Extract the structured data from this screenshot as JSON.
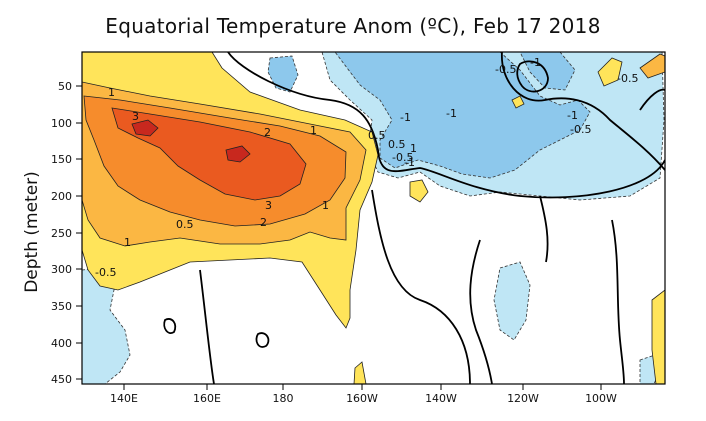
{
  "chart_data": {
    "type": "heatmap",
    "title": "Equatorial Temperature Anom (ºC), Feb 17 2018",
    "ylabel": "Depth (meter)",
    "xlabel": "",
    "x_ticks": [
      "140E",
      "160E",
      "180",
      "160W",
      "140W",
      "120W",
      "100W"
    ],
    "y_ticks": [
      "50",
      "100",
      "150",
      "200",
      "250",
      "300",
      "350",
      "400",
      "450"
    ],
    "xlim": [
      "130E",
      "85W"
    ],
    "ylim": [
      15,
      455
    ],
    "contour_labels": [
      "1",
      "3",
      "2",
      "1",
      "0.5",
      "0.5",
      "1",
      "3",
      "2",
      "1",
      "0.5",
      "1",
      "-0.5",
      "-1",
      "-1",
      "-1",
      "-0.5",
      "-1",
      "-1",
      "-0.5",
      "-0.5",
      "-0.5"
    ],
    "colors": {
      "warm_0_5": "#ffe45a",
      "warm_1": "#fbb743",
      "warm_2": "#f68c2c",
      "warm_3": "#ea5a20",
      "warm_4": "#c8281e",
      "cool_0_5": "#bfe6f5",
      "cool_1": "#8dc8ec"
    }
  }
}
